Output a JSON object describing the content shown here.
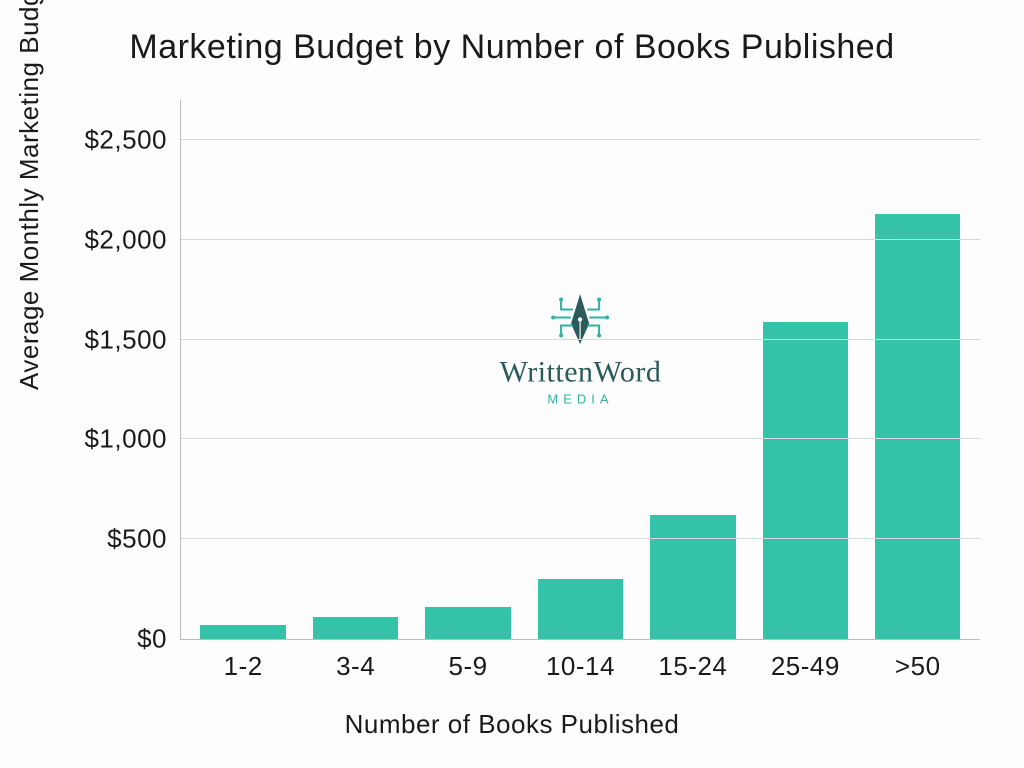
{
  "chart": {
    "type": "bar",
    "title": "Marketing Budget by Number of Books Published",
    "title_fontsize": 34,
    "x_label": "Number of Books Published",
    "y_label": "Average Monthly Marketing Budget ($)",
    "label_fontsize": 26,
    "tick_fontsize": 26,
    "background_color": "#fdfdfd",
    "axis_color": "#bdbdbd",
    "grid_color": "#d9d9d9",
    "text_color": "#1a1a1a",
    "bar_color": "#34c2a8",
    "bar_width": 0.76,
    "ylim": [
      0,
      2700
    ],
    "y_ticks": [
      {
        "value": 0,
        "label": "$0"
      },
      {
        "value": 500,
        "label": "$500"
      },
      {
        "value": 1000,
        "label": "$1,000"
      },
      {
        "value": 1500,
        "label": "$1,500"
      },
      {
        "value": 2000,
        "label": "$2,000"
      },
      {
        "value": 2500,
        "label": "$2,500"
      }
    ],
    "categories": [
      "1-2",
      "3-4",
      "5-9",
      "10-14",
      "15-24",
      "25-49",
      ">50"
    ],
    "values": [
      70,
      110,
      160,
      300,
      620,
      1590,
      2130
    ]
  },
  "watermark": {
    "name": "WrittenWord",
    "sub": "MEDIA",
    "icon_color": "#2fb2a0",
    "name_color": "#2b5a5a",
    "sub_color": "#2fb2a0"
  }
}
